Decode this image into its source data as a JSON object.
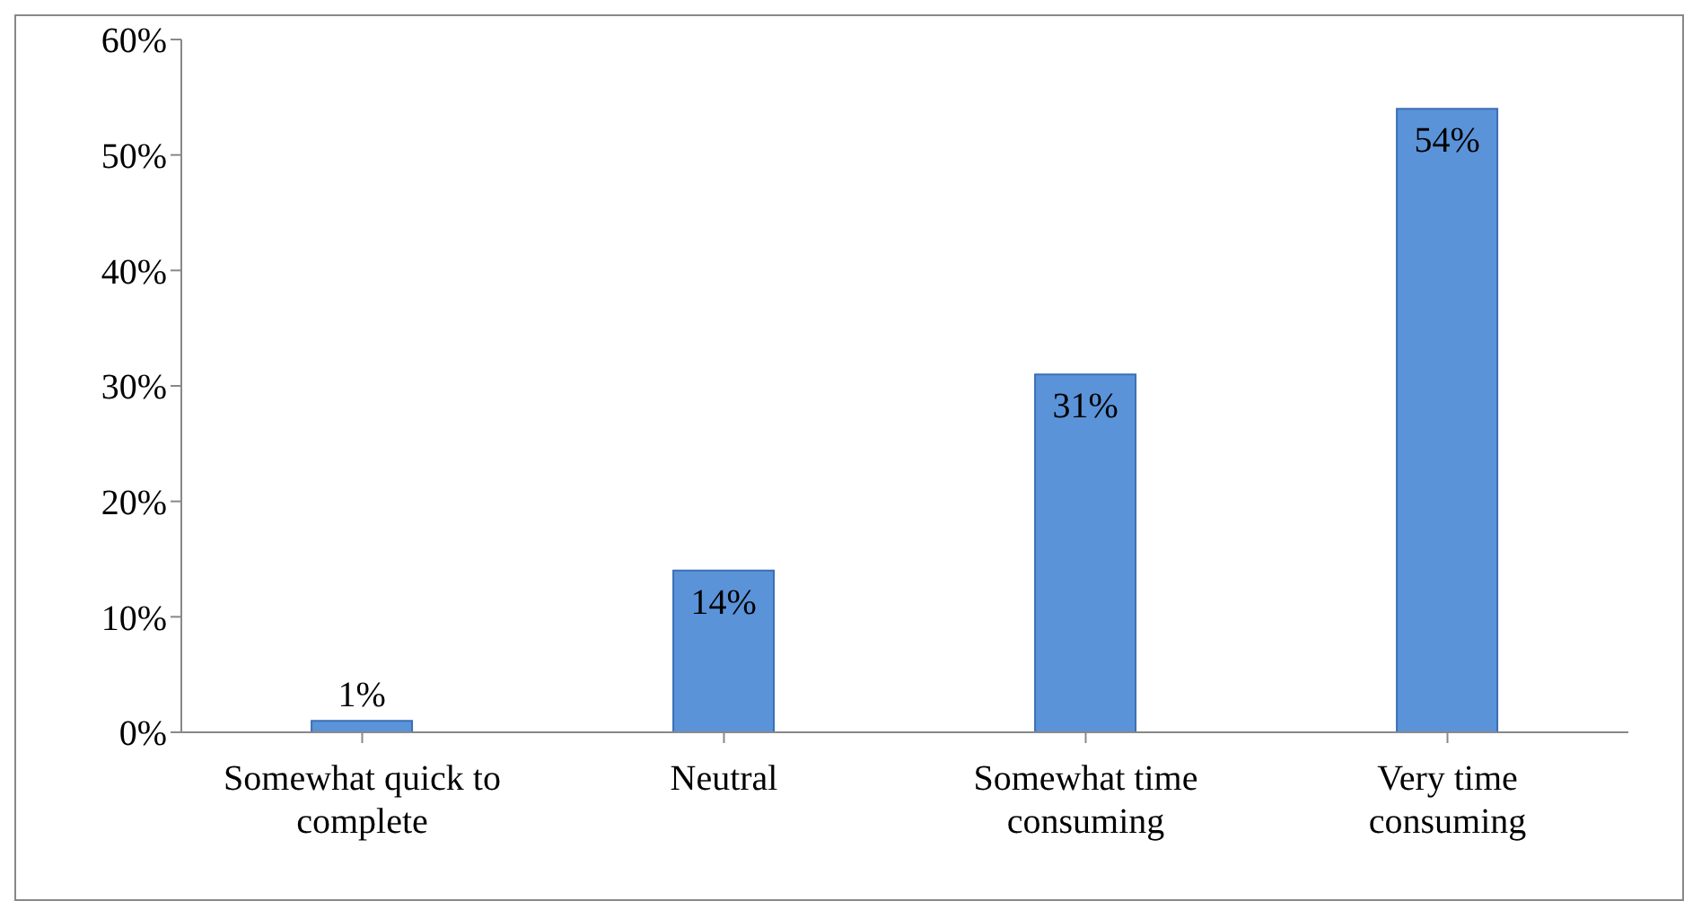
{
  "chart_data": {
    "type": "bar",
    "categories": [
      "Somewhat quick to complete",
      "Neutral",
      "Somewhat time consuming",
      "Very time consuming"
    ],
    "values": [
      1,
      14,
      31,
      54
    ],
    "value_labels": [
      "1%",
      "14%",
      "31%",
      "54%"
    ],
    "color": "#5b93d9",
    "ylim": [
      0,
      60
    ],
    "yticks": [
      {
        "value": 0,
        "label": "0%"
      },
      {
        "value": 10,
        "label": "10%"
      },
      {
        "value": 20,
        "label": "20%"
      },
      {
        "value": 30,
        "label": "30%"
      },
      {
        "value": 40,
        "label": "40%"
      },
      {
        "value": 50,
        "label": "50%"
      },
      {
        "value": 60,
        "label": "60%"
      }
    ],
    "grid": false,
    "legend": false
  }
}
